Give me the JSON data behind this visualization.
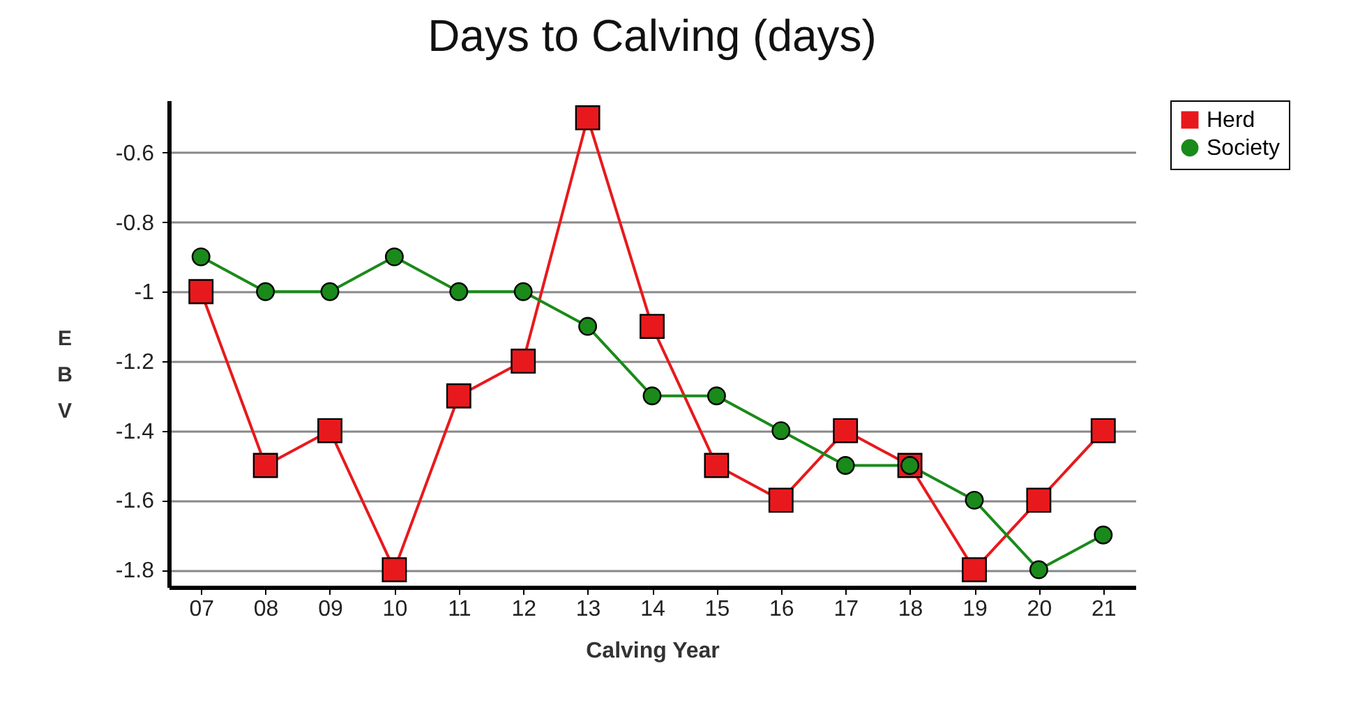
{
  "chart_data": {
    "type": "line",
    "title": "Days to Calving (days)",
    "xlabel": "Calving Year",
    "ylabel": "EBV",
    "categories": [
      "07",
      "08",
      "09",
      "10",
      "11",
      "12",
      "13",
      "14",
      "15",
      "16",
      "17",
      "18",
      "19",
      "20",
      "21"
    ],
    "series": [
      {
        "name": "Herd",
        "color": "#e8191c",
        "marker": "square",
        "values": [
          -1.0,
          -1.5,
          -1.4,
          -1.8,
          -1.3,
          -1.2,
          -0.5,
          -1.1,
          -1.5,
          -1.6,
          -1.4,
          -1.5,
          -1.8,
          -1.6,
          -1.4
        ]
      },
      {
        "name": "Society",
        "color": "#1a8a1a",
        "marker": "circle",
        "values": [
          -0.9,
          -1.0,
          -1.0,
          -0.9,
          -1.0,
          -1.0,
          -1.1,
          -1.3,
          -1.3,
          -1.4,
          -1.5,
          -1.5,
          -1.6,
          -1.8,
          -1.7
        ]
      }
    ],
    "ylim": [
      -1.85,
      -0.45
    ],
    "yticks": [
      -0.6,
      -0.8,
      {
        "value": -1,
        "label": "-1"
      },
      -1.2,
      -1.4,
      -1.6,
      -1.8
    ],
    "grid": "y",
    "legend": "right",
    "line_style": "solid"
  }
}
